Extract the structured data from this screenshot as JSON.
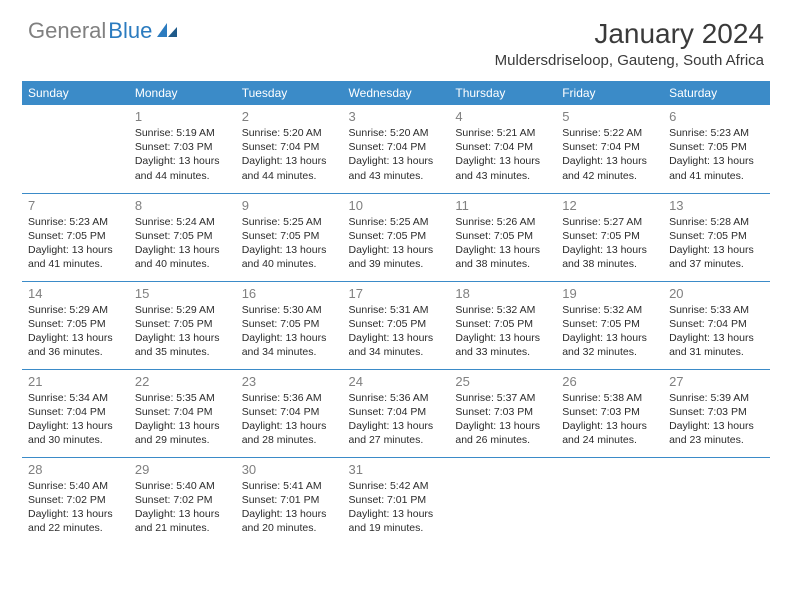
{
  "logo": {
    "gray": "General",
    "blue": "Blue"
  },
  "title": "January 2024",
  "location": "Muldersdriseloop, Gauteng, South Africa",
  "colors": {
    "header_bg": "#3b8bc8",
    "header_text": "#ffffff",
    "border": "#3b8bc8",
    "daynum": "#808080",
    "body_text": "#2b2b2b",
    "logo_gray": "#808080",
    "logo_blue": "#2b7bbf"
  },
  "weekdays": [
    "Sunday",
    "Monday",
    "Tuesday",
    "Wednesday",
    "Thursday",
    "Friday",
    "Saturday"
  ],
  "start_offset": 1,
  "days": [
    {
      "n": "1",
      "sunrise": "5:19 AM",
      "sunset": "7:03 PM",
      "daylight": "13 hours and 44 minutes."
    },
    {
      "n": "2",
      "sunrise": "5:20 AM",
      "sunset": "7:04 PM",
      "daylight": "13 hours and 44 minutes."
    },
    {
      "n": "3",
      "sunrise": "5:20 AM",
      "sunset": "7:04 PM",
      "daylight": "13 hours and 43 minutes."
    },
    {
      "n": "4",
      "sunrise": "5:21 AM",
      "sunset": "7:04 PM",
      "daylight": "13 hours and 43 minutes."
    },
    {
      "n": "5",
      "sunrise": "5:22 AM",
      "sunset": "7:04 PM",
      "daylight": "13 hours and 42 minutes."
    },
    {
      "n": "6",
      "sunrise": "5:23 AM",
      "sunset": "7:05 PM",
      "daylight": "13 hours and 41 minutes."
    },
    {
      "n": "7",
      "sunrise": "5:23 AM",
      "sunset": "7:05 PM",
      "daylight": "13 hours and 41 minutes."
    },
    {
      "n": "8",
      "sunrise": "5:24 AM",
      "sunset": "7:05 PM",
      "daylight": "13 hours and 40 minutes."
    },
    {
      "n": "9",
      "sunrise": "5:25 AM",
      "sunset": "7:05 PM",
      "daylight": "13 hours and 40 minutes."
    },
    {
      "n": "10",
      "sunrise": "5:25 AM",
      "sunset": "7:05 PM",
      "daylight": "13 hours and 39 minutes."
    },
    {
      "n": "11",
      "sunrise": "5:26 AM",
      "sunset": "7:05 PM",
      "daylight": "13 hours and 38 minutes."
    },
    {
      "n": "12",
      "sunrise": "5:27 AM",
      "sunset": "7:05 PM",
      "daylight": "13 hours and 38 minutes."
    },
    {
      "n": "13",
      "sunrise": "5:28 AM",
      "sunset": "7:05 PM",
      "daylight": "13 hours and 37 minutes."
    },
    {
      "n": "14",
      "sunrise": "5:29 AM",
      "sunset": "7:05 PM",
      "daylight": "13 hours and 36 minutes."
    },
    {
      "n": "15",
      "sunrise": "5:29 AM",
      "sunset": "7:05 PM",
      "daylight": "13 hours and 35 minutes."
    },
    {
      "n": "16",
      "sunrise": "5:30 AM",
      "sunset": "7:05 PM",
      "daylight": "13 hours and 34 minutes."
    },
    {
      "n": "17",
      "sunrise": "5:31 AM",
      "sunset": "7:05 PM",
      "daylight": "13 hours and 34 minutes."
    },
    {
      "n": "18",
      "sunrise": "5:32 AM",
      "sunset": "7:05 PM",
      "daylight": "13 hours and 33 minutes."
    },
    {
      "n": "19",
      "sunrise": "5:32 AM",
      "sunset": "7:05 PM",
      "daylight": "13 hours and 32 minutes."
    },
    {
      "n": "20",
      "sunrise": "5:33 AM",
      "sunset": "7:04 PM",
      "daylight": "13 hours and 31 minutes."
    },
    {
      "n": "21",
      "sunrise": "5:34 AM",
      "sunset": "7:04 PM",
      "daylight": "13 hours and 30 minutes."
    },
    {
      "n": "22",
      "sunrise": "5:35 AM",
      "sunset": "7:04 PM",
      "daylight": "13 hours and 29 minutes."
    },
    {
      "n": "23",
      "sunrise": "5:36 AM",
      "sunset": "7:04 PM",
      "daylight": "13 hours and 28 minutes."
    },
    {
      "n": "24",
      "sunrise": "5:36 AM",
      "sunset": "7:04 PM",
      "daylight": "13 hours and 27 minutes."
    },
    {
      "n": "25",
      "sunrise": "5:37 AM",
      "sunset": "7:03 PM",
      "daylight": "13 hours and 26 minutes."
    },
    {
      "n": "26",
      "sunrise": "5:38 AM",
      "sunset": "7:03 PM",
      "daylight": "13 hours and 24 minutes."
    },
    {
      "n": "27",
      "sunrise": "5:39 AM",
      "sunset": "7:03 PM",
      "daylight": "13 hours and 23 minutes."
    },
    {
      "n": "28",
      "sunrise": "5:40 AM",
      "sunset": "7:02 PM",
      "daylight": "13 hours and 22 minutes."
    },
    {
      "n": "29",
      "sunrise": "5:40 AM",
      "sunset": "7:02 PM",
      "daylight": "13 hours and 21 minutes."
    },
    {
      "n": "30",
      "sunrise": "5:41 AM",
      "sunset": "7:01 PM",
      "daylight": "13 hours and 20 minutes."
    },
    {
      "n": "31",
      "sunrise": "5:42 AM",
      "sunset": "7:01 PM",
      "daylight": "13 hours and 19 minutes."
    }
  ],
  "labels": {
    "sunrise": "Sunrise:",
    "sunset": "Sunset:",
    "daylight": "Daylight:"
  }
}
